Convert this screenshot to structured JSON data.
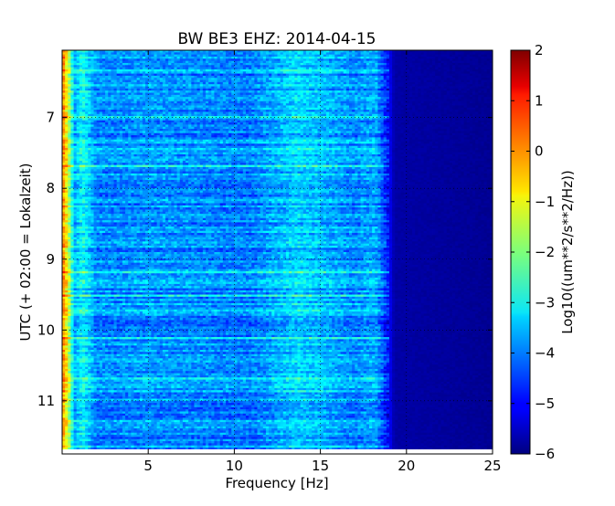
{
  "chart_data": {
    "type": "heatmap",
    "title": "BW BE3 EHZ: 2014-04-15",
    "xlabel": "Frequency [Hz]",
    "ylabel": "UTC (+ 02:00 = Lokalzeit)",
    "xlim": [
      0,
      25
    ],
    "ylim": [
      6.05,
      11.75
    ],
    "y_inverted": true,
    "x_ticks": [
      5,
      10,
      15,
      20,
      25
    ],
    "y_ticks": [
      7,
      8,
      9,
      10,
      11
    ],
    "grid": true,
    "colorbar": {
      "label": "Log10((um**2/s**2/Hz))",
      "range": [
        -6,
        2
      ],
      "ticks": [
        2,
        1,
        0,
        -1,
        -2,
        -3,
        -4,
        -5,
        -6
      ],
      "colormap": "jet"
    },
    "data_end_time": 11.68,
    "spectrum_profile": [
      {
        "freq": 0.1,
        "value": -0.2
      },
      {
        "freq": 0.35,
        "value": -1.3
      },
      {
        "freq": 0.7,
        "value": -3.6
      },
      {
        "freq": 1.2,
        "value": -2.9
      },
      {
        "freq": 2.0,
        "value": -3.9
      },
      {
        "freq": 3.0,
        "value": -3.9
      },
      {
        "freq": 5.0,
        "value": -3.8
      },
      {
        "freq": 8.0,
        "value": -3.9
      },
      {
        "freq": 11.0,
        "value": -4.0
      },
      {
        "freq": 13.6,
        "value": -3.3
      },
      {
        "freq": 15.0,
        "value": -3.5
      },
      {
        "freq": 17.0,
        "value": -3.9
      },
      {
        "freq": 18.2,
        "value": -3.6
      },
      {
        "freq": 19.0,
        "value": -5.0
      },
      {
        "freq": 19.3,
        "value": -5.7
      },
      {
        "freq": 25.0,
        "value": -5.85
      }
    ]
  }
}
